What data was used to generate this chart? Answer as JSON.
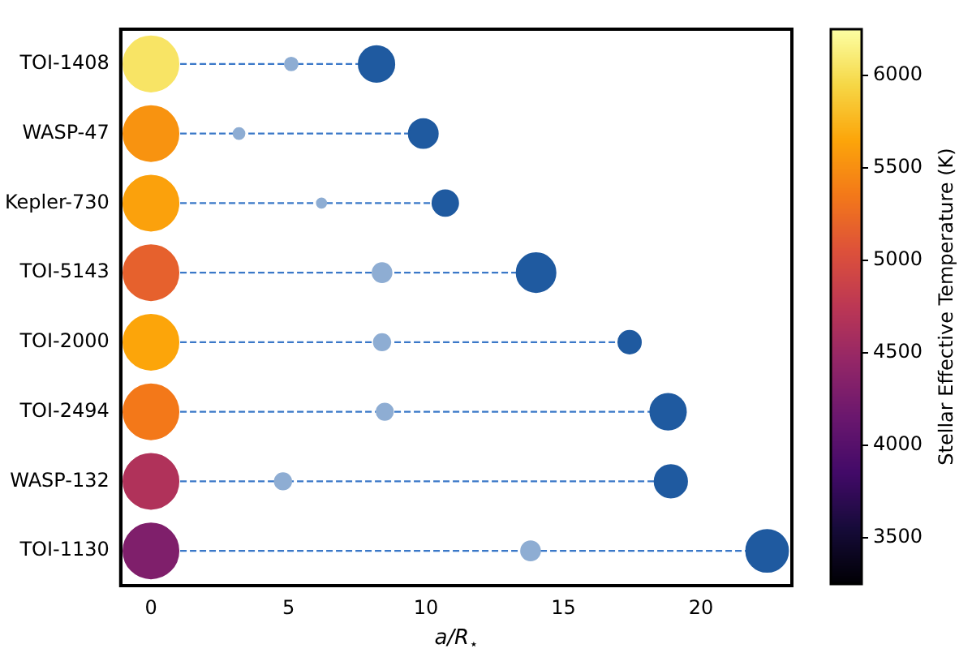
{
  "chart_data": {
    "type": "bubble",
    "orientation": "horizontal",
    "xlabel": "a/R$_{⋆}$",
    "clabel": "Stellar Effective Temperature (K)",
    "categories": [
      "TOI-1408",
      "WASP-47",
      "Kepler-730",
      "TOI-5143",
      "TOI-2000",
      "TOI-2494",
      "WASP-132",
      "TOI-1130"
    ],
    "xlim": [
      -1.1,
      23.3
    ],
    "xticks": [
      0,
      5,
      10,
      15,
      20
    ],
    "clim": [
      3250,
      6250
    ],
    "cticks": [
      3500,
      4000,
      4500,
      5000,
      5500,
      6000
    ],
    "grid": false,
    "legend": false,
    "line_style": "dashed",
    "series": [
      {
        "values": [
          0,
          0,
          0,
          0,
          0,
          0,
          0,
          0
        ],
        "sizes": [
          1,
          1,
          1,
          1,
          1,
          1,
          1,
          1
        ],
        "cvalues": [
          6050,
          5530,
          5620,
          5170,
          5650,
          5350,
          4660,
          4300
        ],
        "colors": [
          "#f8e465",
          "#f89310",
          "#fba10c",
          "#e6612d",
          "#fca50a",
          "#f37819",
          "#b0325a",
          "#7f1f6b"
        ]
      },
      {
        "color": "#8eadd3",
        "values": [
          5.1,
          3.2,
          6.2,
          8.4,
          8.4,
          8.5,
          4.8,
          13.8
        ],
        "sizes": [
          0.055,
          0.04,
          0.03,
          0.12,
          0.09,
          0.09,
          0.09,
          0.12
        ]
      },
      {
        "color": "#1f5aa0",
        "values": [
          8.2,
          9.9,
          10.7,
          14.0,
          17.4,
          18.8,
          18.9,
          22.4
        ],
        "sizes": [
          0.42,
          0.28,
          0.22,
          0.5,
          0.17,
          0.42,
          0.35,
          0.58
        ]
      }
    ]
  }
}
